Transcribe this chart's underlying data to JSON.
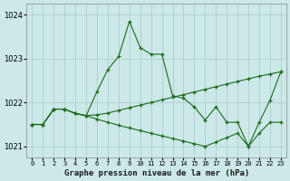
{
  "xlabel": "Graphe pression niveau de la mer (hPa)",
  "hours": [
    0,
    1,
    2,
    3,
    4,
    5,
    6,
    7,
    8,
    9,
    10,
    11,
    12,
    13,
    14,
    15,
    16,
    17,
    18,
    19,
    20,
    21,
    22,
    23
  ],
  "line_color": "#1a6b1a",
  "bg_color": "#cce8e8",
  "grid_color": "#aac8c8",
  "ylim": [
    1020.75,
    1024.25
  ],
  "yticks": [
    1021,
    1022,
    1023,
    1024
  ],
  "figsize": [
    3.2,
    2.0
  ],
  "dpi": 100,
  "s1": [
    1021.5,
    1021.5,
    1021.85,
    1021.85,
    1021.75,
    1021.7,
    1022.25,
    1022.75,
    1023.05,
    1023.85,
    1023.25,
    1023.1,
    1023.1,
    1022.15,
    1022.1,
    1021.9,
    1021.6,
    1021.9,
    1021.55,
    1021.55,
    1021.0,
    1021.55,
    1022.05,
    1022.7
  ],
  "s2": [
    1021.5,
    1021.5,
    1021.85,
    1021.85,
    1021.75,
    1021.7,
    1021.72,
    1021.76,
    1021.82,
    1021.88,
    1021.94,
    1022.0,
    1022.06,
    1022.12,
    1022.18,
    1022.24,
    1022.3,
    1022.36,
    1022.42,
    1022.48,
    1022.54,
    1022.6,
    1022.65,
    1022.7
  ],
  "s3": [
    1021.5,
    1021.5,
    1021.85,
    1021.85,
    1021.75,
    1021.7,
    1021.62,
    1021.55,
    1021.48,
    1021.42,
    1021.36,
    1021.3,
    1021.24,
    1021.18,
    1021.12,
    1021.06,
    1021.0,
    1021.1,
    1021.2,
    1021.3,
    1021.0,
    1021.3,
    1021.55,
    1021.55
  ]
}
